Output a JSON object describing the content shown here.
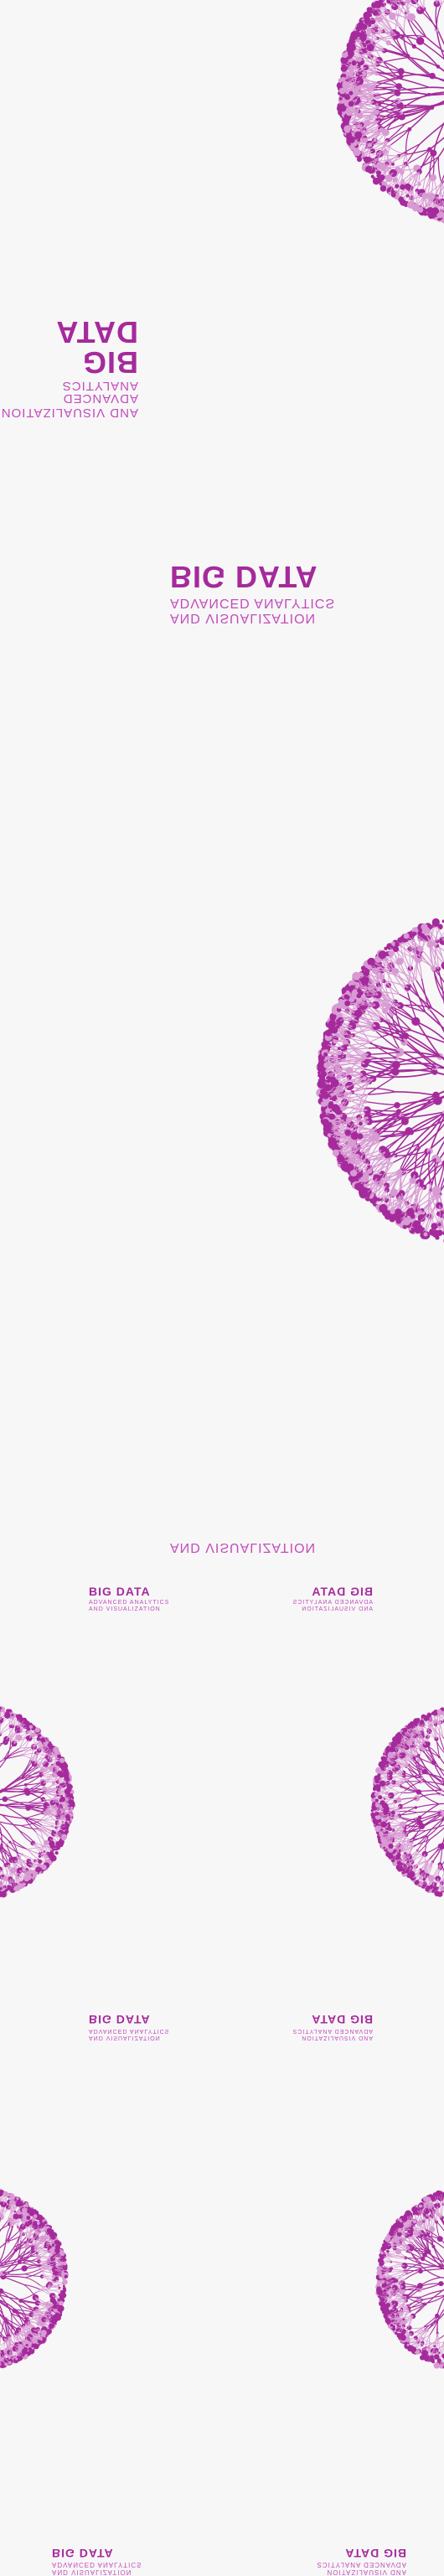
{
  "colors": {
    "accent": "#a52a9c",
    "accent2": "#c24cbc",
    "light": "#d89ad3",
    "background": "#f7f7f7"
  },
  "brand": {
    "title": "BIG DATA",
    "subtitle_line1": "ADVANCED ANALYTICS",
    "subtitle_line2": "AND VISUALIZATION"
  }
}
